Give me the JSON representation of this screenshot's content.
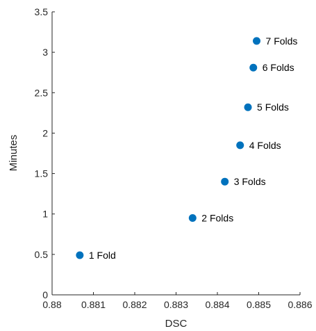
{
  "chart_data": {
    "type": "scatter",
    "title": "",
    "xlabel": "DSC",
    "ylabel": "Minutes",
    "xlim": [
      0.88,
      0.886
    ],
    "ylim": [
      0,
      3.5
    ],
    "x_ticks": [
      0.88,
      0.881,
      0.882,
      0.883,
      0.884,
      0.885,
      0.886
    ],
    "x_tick_labels": [
      "0.88",
      "0.881",
      "0.882",
      "0.883",
      "0.884",
      "0.885",
      "0.886"
    ],
    "y_ticks": [
      0,
      0.5,
      1,
      1.5,
      2,
      2.5,
      3,
      3.5
    ],
    "y_tick_labels": [
      "0",
      "0.5",
      "1",
      "1.5",
      "2",
      "2.5",
      "3",
      "3.5"
    ],
    "grid": false,
    "marker_color": "#0072BD",
    "points": [
      {
        "x": 0.88067,
        "y": 0.49,
        "label": "1 Fold"
      },
      {
        "x": 0.8834,
        "y": 0.95,
        "label": "2 Folds"
      },
      {
        "x": 0.88418,
        "y": 1.4,
        "label": "3 Folds"
      },
      {
        "x": 0.88455,
        "y": 1.85,
        "label": "4 Folds"
      },
      {
        "x": 0.88474,
        "y": 2.32,
        "label": "5 Folds"
      },
      {
        "x": 0.88487,
        "y": 2.81,
        "label": "6 Folds"
      },
      {
        "x": 0.88495,
        "y": 3.14,
        "label": "7 Folds"
      }
    ]
  }
}
